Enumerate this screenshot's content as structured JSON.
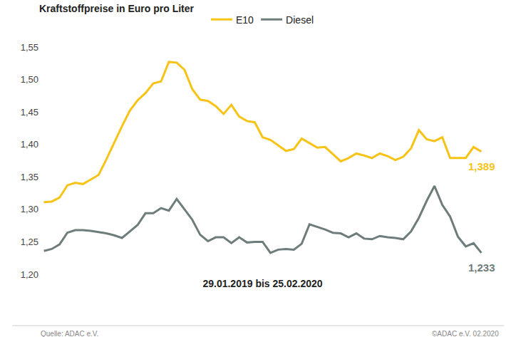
{
  "chart_data": {
    "type": "line",
    "title": "Kraftstoffpreise in Euro pro Liter",
    "x_label": "29.01.2019 bis 25.02.2020",
    "source": "Quelle: ADAC e.V.",
    "credit": "©ADAC e.V. 02.2020",
    "categories": [
      null,
      null,
      null,
      null,
      null,
      null,
      null,
      null,
      null,
      null,
      null,
      null,
      null,
      null,
      null,
      null,
      null,
      null,
      null,
      null,
      null,
      null,
      null,
      null,
      null,
      null,
      null,
      null,
      null,
      null,
      null,
      null,
      null,
      null,
      null,
      null,
      null,
      null,
      null,
      null,
      null,
      null,
      null,
      null,
      null,
      null,
      null,
      null,
      null,
      null,
      null,
      null,
      null,
      null,
      null,
      null,
      null
    ],
    "series": [
      {
        "name": "E10",
        "color": "#f6c316",
        "last_value_label": "1,389",
        "values": [
          1.311,
          1.312,
          1.318,
          1.337,
          1.341,
          1.339,
          1.346,
          1.353,
          1.377,
          1.403,
          1.428,
          1.452,
          1.468,
          1.479,
          1.494,
          1.497,
          1.527,
          1.526,
          1.515,
          1.485,
          1.469,
          1.467,
          1.459,
          1.447,
          1.461,
          1.443,
          1.436,
          1.434,
          1.411,
          1.407,
          1.399,
          1.39,
          1.393,
          1.409,
          1.402,
          1.395,
          1.396,
          1.385,
          1.374,
          1.379,
          1.386,
          1.383,
          1.379,
          1.386,
          1.382,
          1.376,
          1.381,
          1.394,
          1.422,
          1.408,
          1.405,
          1.411,
          1.379,
          1.379,
          1.379,
          1.396,
          1.389
        ]
      },
      {
        "name": "Diesel",
        "color": "#6e7c7c",
        "last_value_label": "1,233",
        "values": [
          1.236,
          1.239,
          1.246,
          1.264,
          1.268,
          1.268,
          1.267,
          1.265,
          1.263,
          1.26,
          1.256,
          1.266,
          1.276,
          1.294,
          1.294,
          1.302,
          1.298,
          1.316,
          1.3,
          1.284,
          1.261,
          1.251,
          1.257,
          1.257,
          1.248,
          1.257,
          1.249,
          1.25,
          1.25,
          1.233,
          1.238,
          1.239,
          1.238,
          1.247,
          1.277,
          1.273,
          1.269,
          1.264,
          1.263,
          1.257,
          1.263,
          1.255,
          1.254,
          1.259,
          1.257,
          1.256,
          1.254,
          1.266,
          1.287,
          1.313,
          1.336,
          1.307,
          1.289,
          1.258,
          1.243,
          1.248,
          1.233
        ]
      }
    ],
    "ylim": [
      1.2,
      1.55
    ],
    "yticks": [
      {
        "value": 1.2,
        "label": "1,20"
      },
      {
        "value": 1.25,
        "label": "1,25"
      },
      {
        "value": 1.3,
        "label": "1,30"
      },
      {
        "value": 1.35,
        "label": "1,35"
      },
      {
        "value": 1.4,
        "label": "1,40"
      },
      {
        "value": 1.45,
        "label": "1,45"
      },
      {
        "value": 1.5,
        "label": "1,50"
      },
      {
        "value": 1.55,
        "label": "1,55"
      }
    ],
    "grid": false,
    "legend": "top",
    "tick_labels": "y"
  }
}
